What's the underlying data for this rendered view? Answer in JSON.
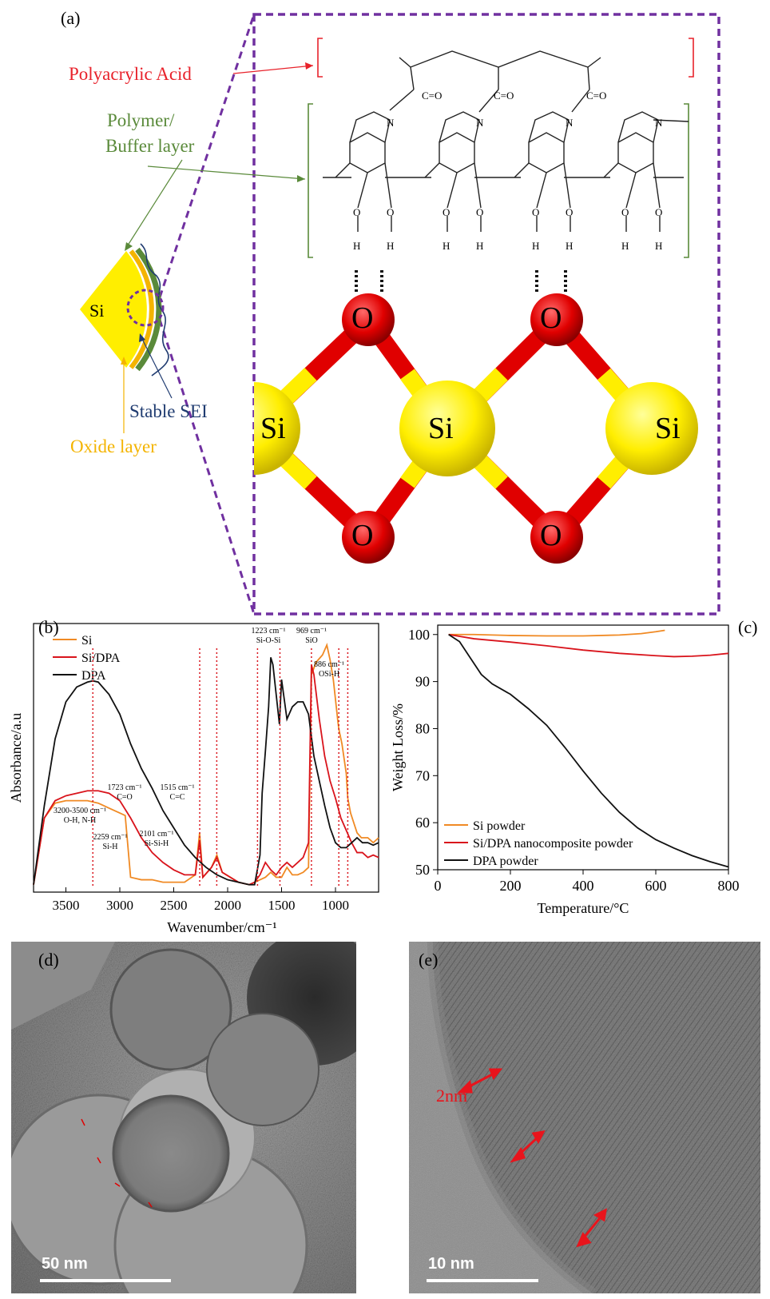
{
  "panel_a": {
    "label": "(a)",
    "texts": {
      "paa": "Polyacrylic Acid",
      "polymer_line1": "Polymer/",
      "polymer_line2": "Buffer layer",
      "si_core": "Si",
      "stable_sei": "Stable SEI",
      "oxide_layer": "Oxide layer",
      "carbonyl": "C=O",
      "oxygen": "O",
      "hydrogen": "H",
      "nitrogen": "N",
      "atom_o": "O",
      "atom_si": "Si"
    },
    "colors": {
      "paa": "#e8222b",
      "polymer": "#5a8a3a",
      "sei": "#1f3b70",
      "oxide": "#f4b400",
      "frame": "#7030a0",
      "atom_o": "#e00000",
      "atom_si": "#ffee00"
    }
  },
  "panel_b": {
    "label": "(b)",
    "chart_data": {
      "type": "line",
      "xlabel": "Wavenumber/cm⁻¹",
      "ylabel": "Absorbance/a.u",
      "xlim": [
        3800,
        600
      ],
      "x_ticks": [
        3500,
        3000,
        2500,
        2000,
        1500,
        1000
      ],
      "legend": [
        "Si",
        "Si/DPA",
        "DPA"
      ],
      "series": [
        {
          "name": "Si",
          "color": "#f08a24",
          "x": [
            3800,
            3700,
            3600,
            3500,
            3400,
            3300,
            3200,
            3100,
            3000,
            2950,
            2900,
            2800,
            2700,
            2600,
            2500,
            2400,
            2300,
            2260,
            2230,
            2150,
            2100,
            2050,
            1900,
            1800,
            1750,
            1700,
            1650,
            1600,
            1550,
            1500,
            1450,
            1400,
            1350,
            1300,
            1250,
            1223,
            1180,
            1120,
            1080,
            1050,
            1020,
            980,
            969,
            940,
            900,
            886,
            860,
            800,
            760,
            700,
            650,
            600
          ],
          "y": [
            0.03,
            0.3,
            0.36,
            0.37,
            0.37,
            0.37,
            0.36,
            0.34,
            0.32,
            0.31,
            0.06,
            0.05,
            0.05,
            0.04,
            0.04,
            0.04,
            0.07,
            0.24,
            0.06,
            0.1,
            0.15,
            0.08,
            0.04,
            0.03,
            0.04,
            0.05,
            0.06,
            0.08,
            0.06,
            0.06,
            0.1,
            0.07,
            0.07,
            0.08,
            0.1,
            0.88,
            0.93,
            0.96,
            1.0,
            0.94,
            0.86,
            0.7,
            0.66,
            0.6,
            0.48,
            0.38,
            0.32,
            0.24,
            0.22,
            0.22,
            0.2,
            0.22
          ]
        },
        {
          "name": "Si/DPA",
          "color": "#d9141c",
          "x": [
            3800,
            3700,
            3600,
            3500,
            3400,
            3300,
            3200,
            3100,
            3000,
            2900,
            2800,
            2700,
            2600,
            2500,
            2400,
            2300,
            2260,
            2230,
            2150,
            2100,
            2050,
            1900,
            1800,
            1750,
            1700,
            1650,
            1600,
            1550,
            1500,
            1450,
            1400,
            1350,
            1300,
            1250,
            1223,
            1200,
            1150,
            1100,
            1050,
            1000,
            950,
            900,
            850,
            800,
            750,
            700,
            650,
            600
          ],
          "y": [
            0.03,
            0.3,
            0.37,
            0.39,
            0.4,
            0.41,
            0.41,
            0.4,
            0.37,
            0.3,
            0.22,
            0.16,
            0.12,
            0.09,
            0.07,
            0.07,
            0.21,
            0.06,
            0.1,
            0.14,
            0.08,
            0.04,
            0.03,
            0.04,
            0.07,
            0.12,
            0.09,
            0.07,
            0.1,
            0.12,
            0.1,
            0.12,
            0.14,
            0.2,
            0.92,
            0.88,
            0.7,
            0.55,
            0.45,
            0.38,
            0.3,
            0.25,
            0.2,
            0.16,
            0.16,
            0.14,
            0.15,
            0.14
          ]
        },
        {
          "name": "DPA",
          "color": "#111111",
          "x": [
            3800,
            3700,
            3600,
            3500,
            3400,
            3300,
            3250,
            3200,
            3100,
            3000,
            2900,
            2800,
            2700,
            2600,
            2500,
            2400,
            2300,
            2200,
            2100,
            2000,
            1900,
            1800,
            1750,
            1700,
            1680,
            1650,
            1620,
            1600,
            1580,
            1550,
            1520,
            1500,
            1450,
            1400,
            1350,
            1300,
            1250,
            1200,
            1150,
            1100,
            1050,
            1000,
            950,
            900,
            850,
            800,
            750,
            700,
            650,
            600
          ],
          "y": [
            0.03,
            0.35,
            0.62,
            0.77,
            0.83,
            0.85,
            0.855,
            0.85,
            0.8,
            0.72,
            0.6,
            0.5,
            0.42,
            0.33,
            0.26,
            0.19,
            0.14,
            0.1,
            0.07,
            0.05,
            0.04,
            0.03,
            0.03,
            0.15,
            0.4,
            0.57,
            0.75,
            0.95,
            0.92,
            0.8,
            0.68,
            0.86,
            0.7,
            0.75,
            0.77,
            0.77,
            0.72,
            0.55,
            0.45,
            0.35,
            0.26,
            0.2,
            0.18,
            0.18,
            0.2,
            0.22,
            0.2,
            0.2,
            0.19,
            0.2
          ]
        }
      ],
      "annotations": [
        {
          "text1": "3200-3500 cm⁻¹",
          "text2": "O-H, N-H",
          "x": 3250
        },
        {
          "text1": "2259 cm⁻¹",
          "text2": "Si-H",
          "x": 2259
        },
        {
          "text1": "2101 cm⁻¹",
          "text2": "Si-Si-H",
          "x": 2101
        },
        {
          "text1": "1723 cm⁻¹",
          "text2": "C=O",
          "x": 1723
        },
        {
          "text1": "1515 cm⁻¹",
          "text2": "C=C",
          "x": 1515
        },
        {
          "text1": "1223 cm⁻¹",
          "text2": "Si-O-Si",
          "x": 1223
        },
        {
          "text1": "969 cm⁻¹",
          "text2": "SiO",
          "x": 969
        },
        {
          "text1": "886 cm⁻¹",
          "text2": "OSi-H",
          "x": 886
        }
      ]
    }
  },
  "panel_c": {
    "label": "(c)",
    "chart_data": {
      "type": "line",
      "xlabel": "Temperature/°C",
      "ylabel": "Weight Loss/%",
      "xlim": [
        0,
        800
      ],
      "ylim": [
        50,
        102
      ],
      "x_ticks": [
        0,
        200,
        400,
        600,
        800
      ],
      "y_ticks": [
        50,
        60,
        70,
        80,
        90,
        100
      ],
      "legend_position": "bottom-left",
      "series": [
        {
          "name": "Si powder",
          "color": "#f08a24",
          "x": [
            30,
            100,
            200,
            300,
            400,
            500,
            560,
            600,
            625
          ],
          "y": [
            100,
            100,
            99.8,
            99.7,
            99.7,
            99.9,
            100.2,
            100.6,
            100.9
          ]
        },
        {
          "name": "Si/DPA nanocomposite powder",
          "color": "#d9141c",
          "x": [
            30,
            100,
            200,
            300,
            400,
            500,
            600,
            650,
            700,
            750,
            800
          ],
          "y": [
            100,
            99.1,
            98.4,
            97.6,
            96.7,
            96.0,
            95.5,
            95.3,
            95.4,
            95.6,
            96.0
          ]
        },
        {
          "name": "DPA powder",
          "color": "#111111",
          "x": [
            30,
            60,
            90,
            120,
            150,
            200,
            250,
            300,
            350,
            400,
            450,
            500,
            550,
            600,
            650,
            700,
            750,
            800
          ],
          "y": [
            100,
            98.5,
            95,
            91.5,
            89.5,
            87.3,
            84.2,
            80.7,
            76,
            71,
            66.3,
            62.2,
            58.9,
            56.4,
            54.6,
            53,
            51.7,
            50.6
          ]
        }
      ]
    }
  },
  "panel_d": {
    "label": "(d)",
    "scale": "50 nm"
  },
  "panel_e": {
    "label": "(e)",
    "scale": "10 nm",
    "thickness": "2nm"
  }
}
